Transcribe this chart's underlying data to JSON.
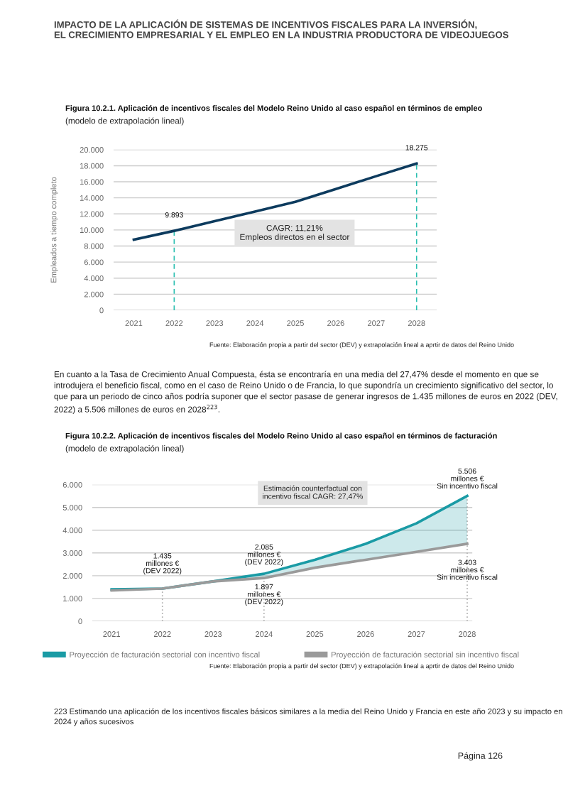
{
  "chart_data": [
    {
      "type": "line",
      "title": "Figura 10.2.1. Aplicación de incentivos fiscales del Modelo Reino Unido al caso español en términos de empleo",
      "subtitle": "(modelo de extrapolación lineal)",
      "ylabel": "Empleados a tiempo completo",
      "x": [
        2021,
        2022,
        2023,
        2024,
        2025,
        2026,
        2027,
        2028
      ],
      "series": [
        {
          "color": "#0d3b5e",
          "values": [
            8800,
            9893,
            11100,
            12300,
            13500,
            15100,
            16700,
            18275
          ]
        }
      ],
      "xlim": [
        2020.5,
        2028.5
      ],
      "xticks": [
        2021,
        2022,
        2023,
        2024,
        2025,
        2026,
        2027,
        2028
      ],
      "ylim": [
        0,
        20000
      ],
      "yticks": [
        {
          "value": 0,
          "label": "0"
        },
        {
          "value": 2000,
          "label": "2.000"
        },
        {
          "value": 4000,
          "label": "4.000"
        },
        {
          "value": 6000,
          "label": "6.000"
        },
        {
          "value": 8000,
          "label": "8.000"
        },
        {
          "value": 10000,
          "label": "10.000"
        },
        {
          "value": 12000,
          "label": "12.000"
        },
        {
          "value": 14000,
          "label": "14.000"
        },
        {
          "value": 16000,
          "label": "16.000"
        },
        {
          "value": 18000,
          "label": "18.000"
        },
        {
          "value": 20000,
          "label": "20.000"
        }
      ],
      "grid": "y",
      "ref_lines": [
        {
          "axis": "x",
          "value": 2022,
          "color": "#2bbfb0",
          "line_style": "dashed"
        },
        {
          "axis": "x",
          "value": 2028,
          "color": "#2bbfb0",
          "line_style": "dashed"
        }
      ],
      "annotations": [
        "IMPACTO DE LA APLICACIÓN DE SISTEMAS DE INCENTIVOS FISCALES PARA LA INVERSIÓN,\nEL CRECIMIENTO EMPRESARIAL Y EL EMPLEO EN LA INDUSTRIA PRODUCTORA DE VIDEOJUEGOS",
        "CAGR: 11,21%\nEmpleos directos en el sector",
        "Fuente: Elaboración propia a partir del sector (DEV) y extrapolación lineal a aprtir de datos del Reino Unido",
        {
          "text": "9.893",
          "x": 2022,
          "y": 9893
        },
        {
          "text": "18.275",
          "x": 2028,
          "y": 18275
        }
      ]
    },
    {
      "type": "line",
      "title": "Figura 10.2.2. Aplicación de incentivos fiscales del Modelo Reino Unido al caso español en términos de facturación",
      "subtitle": "(modelo de extrapolación lineal)",
      "x": [
        2021,
        2022,
        2023,
        2024,
        2025,
        2026,
        2027,
        2028
      ],
      "series": [
        {
          "name": "Proyección de facturación sectorial con incentivo fiscal",
          "color": "#1a9ba5",
          "values": [
            1400,
            1435,
            1750,
            2085,
            2700,
            3400,
            4300,
            5506
          ],
          "lower": [
            1350,
            1435,
            1750,
            1897,
            2350,
            2700,
            3050,
            3403
          ],
          "upper": [
            1400,
            1435,
            1750,
            2085,
            2700,
            3400,
            4300,
            5506
          ]
        },
        {
          "name": "Proyección de facturación sectorial sin incentivo fiscal",
          "color": "#9a9a9a",
          "values": [
            1350,
            1435,
            1750,
            1897,
            2350,
            2700,
            3050,
            3403
          ]
        }
      ],
      "xlim": [
        2020.62,
        2028.1
      ],
      "xticks": [
        2021,
        2022,
        2023,
        2024,
        2025,
        2026,
        2027,
        2028
      ],
      "ylim": [
        0,
        6000
      ],
      "yticks": [
        {
          "value": 0,
          "label": "0"
        },
        {
          "value": 1000,
          "label": "1.000"
        },
        {
          "value": 2000,
          "label": "2.000"
        },
        {
          "value": 3000,
          "label": "3.000"
        },
        {
          "value": 4000,
          "label": "4.000"
        },
        {
          "value": 5000,
          "label": "5.000"
        },
        {
          "value": 6000,
          "label": "6.000"
        }
      ],
      "grid": "y",
      "legend": "bottom",
      "ref_lines": [
        {
          "axis": "x",
          "value": 2022,
          "color": "#b0b0b0",
          "line_style": "dotted"
        },
        {
          "axis": "x",
          "value": 2024,
          "color": "#b0b0b0",
          "line_style": "dotted"
        },
        {
          "axis": "x",
          "value": 2028,
          "color": "#b0b0b0",
          "line_style": "dotted"
        }
      ],
      "annotations": [
        "En cuanto a la Tasa de Crecimiento Anual Compuesta, ésta se encontraría en una media del 27,47% desde el momento en que se introdujera el beneficio fiscal, como en el caso de Reino Unido o de Francia, lo que supondría un crecimiento significativo del sector, lo que para un periodo de cinco años podría suponer que el sector pasase de generar ingresos de 1.435 millones de euros en 2022 (DEV, 2022) a 5.506 millones de euros en 2028$^{223}$.",
        "Estimación counterfactual con\nincentivo fiscal CAGR: 27,47%",
        "Fuente: Elaboración propia a partir del sector (DEV) y extrapolación lineal a aprtir de datos del Reino Unido",
        "223 Estimando una aplicación de los incentivos fiscales básicos similares a la media del Reino Unido y Francia en este año 2023 y su impacto en 2024 y años sucesivos",
        "Página 126",
        {
          "text": "1.435\nmillones €\n(DEV 2022)",
          "x": 2022,
          "y": 1435
        },
        {
          "text": "2.085\nmillones €\n(DEV 2022)",
          "x": 2024,
          "y": 2085
        },
        {
          "text": "1.897\nmillones €\n(DEV 2022)",
          "x": 2024,
          "y": 1897
        },
        {
          "text": "5.506\nmillones €\nSin incentivo fiscal",
          "x": 2028,
          "y": 5506
        },
        {
          "text": "3.403\nmillones €\nSin incentivo fiscal",
          "x": 2028,
          "y": 3403
        }
      ]
    }
  ]
}
